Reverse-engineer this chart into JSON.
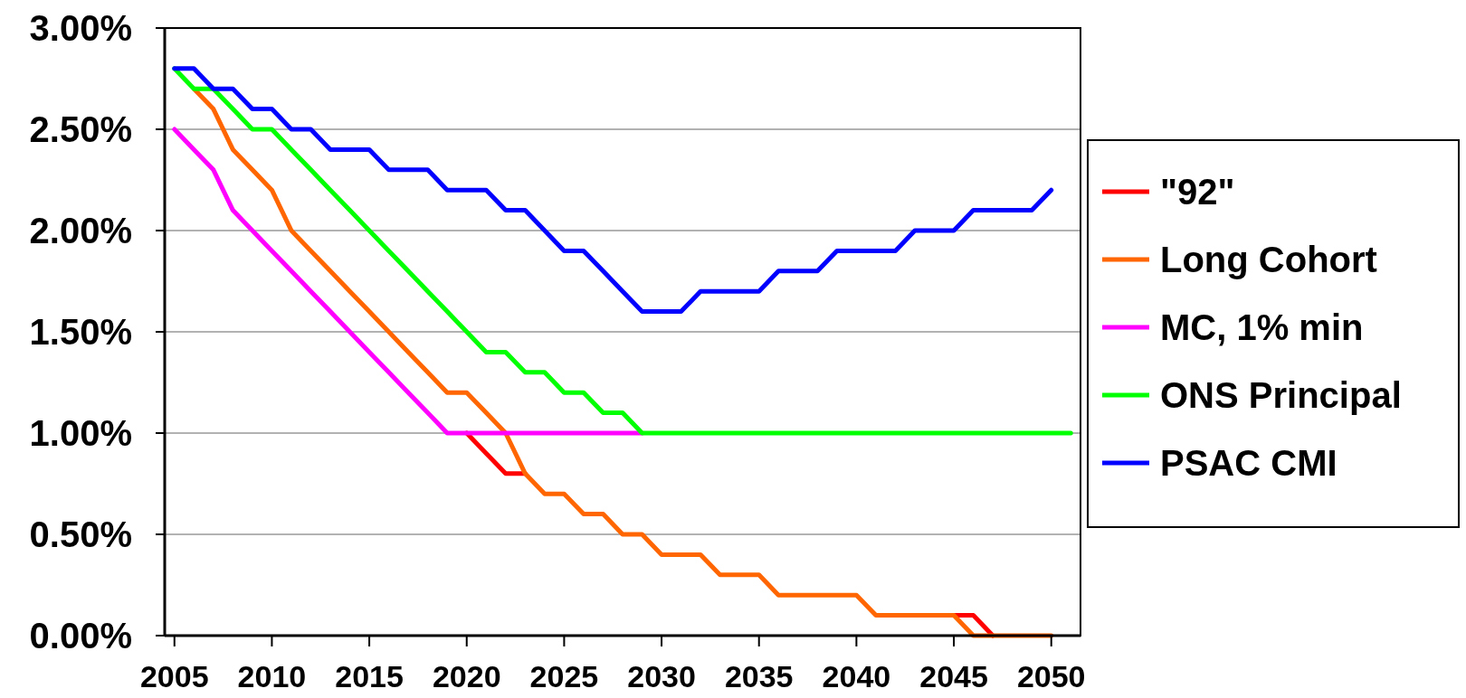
{
  "chart_data": {
    "type": "line",
    "x": [
      2005,
      2006,
      2007,
      2008,
      2009,
      2010,
      2011,
      2012,
      2013,
      2014,
      2015,
      2016,
      2017,
      2018,
      2019,
      2020,
      2021,
      2022,
      2023,
      2024,
      2025,
      2026,
      2027,
      2028,
      2029,
      2030,
      2031,
      2032,
      2033,
      2034,
      2035,
      2036,
      2037,
      2038,
      2039,
      2040,
      2041,
      2042,
      2043,
      2044,
      2045,
      2046,
      2047,
      2048,
      2049,
      2050,
      2051
    ],
    "series": [
      {
        "name": "\"92\"",
        "color": "#ff0000",
        "values": [
          null,
          null,
          null,
          null,
          null,
          null,
          null,
          null,
          null,
          null,
          null,
          null,
          null,
          null,
          null,
          1.0,
          0.9,
          0.8,
          0.8,
          null,
          null,
          null,
          null,
          null,
          null,
          null,
          null,
          null,
          null,
          null,
          null,
          null,
          null,
          null,
          null,
          null,
          null,
          null,
          null,
          null,
          0.1,
          0.1,
          0,
          null,
          null,
          null,
          null
        ]
      },
      {
        "name": "Long Cohort",
        "color": "#ff6600",
        "values": [
          null,
          2.7,
          2.6,
          2.4,
          2.3,
          2.2,
          2.0,
          1.9,
          1.8,
          1.7,
          1.6,
          1.5,
          1.4,
          1.3,
          1.2,
          1.2,
          1.1,
          1.0,
          0.8,
          0.7,
          0.7,
          0.6,
          0.6,
          0.5,
          0.5,
          0.4,
          0.4,
          0.4,
          0.3,
          0.3,
          0.3,
          0.2,
          0.2,
          0.2,
          0.2,
          0.2,
          0.1,
          0.1,
          0.1,
          0.1,
          0.1,
          0,
          0,
          0,
          0,
          0,
          null
        ]
      },
      {
        "name": "MC, 1% min",
        "color": "#ff00ff",
        "values": [
          2.5,
          2.4,
          2.3,
          2.1,
          2.0,
          1.9,
          1.8,
          1.7,
          1.6,
          1.5,
          1.4,
          1.3,
          1.2,
          1.1,
          1.0,
          1.0,
          1.0,
          1.0,
          1.0,
          1.0,
          1.0,
          1.0,
          1.0,
          1.0,
          1.0,
          null,
          null,
          null,
          null,
          null,
          null,
          null,
          null,
          null,
          null,
          null,
          null,
          null,
          null,
          null,
          null,
          null,
          null,
          null,
          null,
          null,
          null
        ]
      },
      {
        "name": "ONS Principal",
        "color": "#00ff00",
        "values": [
          2.8,
          2.7,
          2.7,
          2.6,
          2.5,
          2.5,
          2.4,
          2.3,
          2.2,
          2.1,
          2.0,
          1.9,
          1.8,
          1.7,
          1.6,
          1.5,
          1.4,
          1.4,
          1.3,
          1.3,
          1.2,
          1.2,
          1.1,
          1.1,
          1.0,
          1.0,
          1.0,
          1.0,
          1.0,
          1.0,
          1.0,
          1.0,
          1.0,
          1.0,
          1.0,
          1.0,
          1.0,
          1.0,
          1.0,
          1.0,
          1.0,
          1.0,
          1.0,
          1.0,
          1.0,
          1.0,
          1.0
        ]
      },
      {
        "name": "PSAC CMI",
        "color": "#0000ff",
        "values": [
          2.8,
          2.8,
          2.7,
          2.7,
          2.6,
          2.6,
          2.5,
          2.5,
          2.4,
          2.4,
          2.4,
          2.3,
          2.3,
          2.3,
          2.2,
          2.2,
          2.2,
          2.1,
          2.1,
          2.0,
          1.9,
          1.9,
          1.8,
          1.7,
          1.6,
          1.6,
          1.6,
          1.7,
          1.7,
          1.7,
          1.7,
          1.8,
          1.8,
          1.8,
          1.9,
          1.9,
          1.9,
          1.9,
          2.0,
          2.0,
          2.0,
          2.1,
          2.1,
          2.1,
          2.1,
          2.2,
          null
        ]
      }
    ],
    "xlim": [
      2004.5,
      2051.5
    ],
    "xticks": [
      2005,
      2010,
      2015,
      2020,
      2025,
      2030,
      2035,
      2040,
      2045,
      2050
    ],
    "ylim": [
      0,
      3
    ],
    "yticks": [
      {
        "value": 0,
        "label": "0.00%"
      },
      {
        "value": 0.5,
        "label": "0.50%"
      },
      {
        "value": 1,
        "label": "1.00%"
      },
      {
        "value": 1.5,
        "label": "1.50%"
      },
      {
        "value": 2,
        "label": "2.00%"
      },
      {
        "value": 2.5,
        "label": "2.50%"
      },
      {
        "value": 3,
        "label": "3.00%"
      }
    ],
    "grid": "y",
    "legend": "right"
  }
}
